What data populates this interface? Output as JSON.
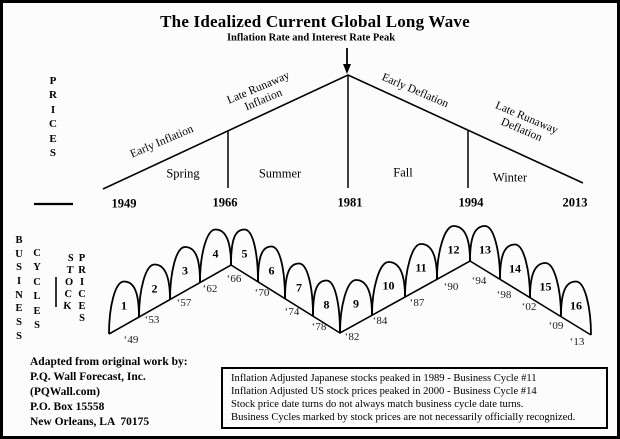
{
  "title": "The Idealized Current Global Long Wave",
  "subtitle": "Inflation Rate and Interest Rate Peak",
  "upper_chart": {
    "y_axis_label": "PRICES",
    "phases": [
      {
        "lines": [
          "Early Inflation"
        ]
      },
      {
        "lines": [
          "Late Runaway",
          "Inflation"
        ]
      },
      {
        "lines": [
          "Early Deflation"
        ]
      },
      {
        "lines": [
          "Late Runaway",
          "Deflation"
        ]
      }
    ],
    "seasons": [
      "Spring",
      "Summer",
      "Fall",
      "Winter"
    ],
    "years": [
      "1949",
      "1966",
      "1981",
      "1994",
      "2013"
    ]
  },
  "lower_chart": {
    "axis_words": [
      "BUSINESS",
      "CYCLES",
      "STOCK",
      "PRICES"
    ],
    "cycle_numbers": [
      "1",
      "2",
      "3",
      "4",
      "5",
      "6",
      "7",
      "8",
      "9",
      "10",
      "11",
      "12",
      "13",
      "14",
      "15",
      "16"
    ],
    "cycle_years": [
      "‘49",
      "‘53",
      "‘57",
      "‘62",
      "‘66",
      "‘70",
      "‘74",
      "‘78",
      "‘82",
      "‘84",
      "‘87",
      "‘90",
      "‘94",
      "‘98",
      "‘02",
      "‘09",
      "‘13"
    ]
  },
  "attribution": {
    "lines": [
      "Adapted from original work by:",
      "P.Q. Wall Forecast, Inc.",
      "(PQWall.com)",
      "P.O. Box 15558",
      "New Orleans, LA  70175"
    ]
  },
  "notes": {
    "lines": [
      "Inflation Adjusted Japanese stocks peaked in 1989 - Business Cycle #11",
      "Inflation Adjusted US stock prices peaked in 2000 - Business Cycle #14",
      "Stock price date turns do not always match business cycle date turns.",
      "Business Cycles marked by stock prices are not necessarily officially recognized."
    ]
  },
  "colors": {
    "ink": "#000000",
    "background": "#fcfcfc"
  }
}
